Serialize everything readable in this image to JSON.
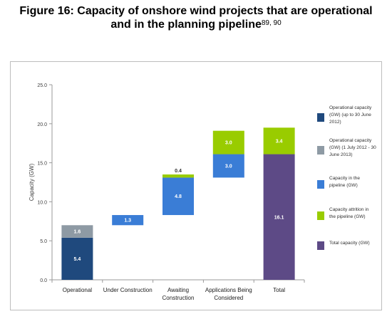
{
  "figure": {
    "title_line1": "Figure 16: Capacity of onshore wind projects that are operational",
    "title_line2": "and in the planning pipeline",
    "footnote_refs": "89, 90"
  },
  "chart_data": {
    "type": "bar",
    "subtype": "stacked-waterfall",
    "categories": [
      "Operational",
      "Under Construction",
      "Awaiting\nConstruction",
      "Applications Being\nConsidered",
      "Total"
    ],
    "ylabel": "Capacity (GW)",
    "xlabel": "",
    "ylim": [
      0,
      25
    ],
    "yticks": [
      "0.0",
      "5.0",
      "10.0",
      "15.0",
      "20.0",
      "25.0"
    ],
    "ytick_values": [
      0,
      5,
      10,
      15,
      20,
      25
    ],
    "grid": false,
    "legend_position": "right",
    "segments": [
      {
        "category": 0,
        "base": 0.0,
        "value": 5.4,
        "legend_key": 0,
        "label": "5.4",
        "color": "#1f497d"
      },
      {
        "category": 0,
        "base": 5.4,
        "value": 1.6,
        "legend_key": 1,
        "label": "1.6",
        "color": "#8e9aa4"
      },
      {
        "category": 1,
        "base": 7.0,
        "value": 1.3,
        "legend_key": 2,
        "label": "1.3",
        "color": "#3a7dd6"
      },
      {
        "category": 2,
        "base": 8.3,
        "value": 4.8,
        "legend_key": 2,
        "label": "4.8",
        "color": "#3a7dd6"
      },
      {
        "category": 2,
        "base": 13.1,
        "value": 0.4,
        "legend_key": 3,
        "label": "0.4",
        "color": "#99cc00"
      },
      {
        "category": 3,
        "base": 13.1,
        "value": 3.0,
        "legend_key": 2,
        "label": "3.0",
        "color": "#3a7dd6"
      },
      {
        "category": 3,
        "base": 16.1,
        "value": 3.0,
        "legend_key": 3,
        "label": "3.0",
        "color": "#99cc00"
      },
      {
        "category": 4,
        "base": 0.0,
        "value": 16.1,
        "legend_key": 4,
        "label": "16.1",
        "color": "#5d4a86"
      },
      {
        "category": 4,
        "base": 16.1,
        "value": 3.4,
        "legend_key": 3,
        "label": "3.4",
        "color": "#99cc00"
      }
    ],
    "legend": [
      {
        "label": "Operational capacity (GW) (up to 30 June 2012)",
        "color": "#1f497d"
      },
      {
        "label": "Operational capacity (GW) (1 July 2012 - 30 June 2013)",
        "color": "#8e9aa4"
      },
      {
        "label": "Capacity in the pipeline (GW)",
        "color": "#3a7dd6"
      },
      {
        "label": "Capacity attrition in the pipeline (GW)",
        "color": "#99cc00"
      },
      {
        "label": "Total capacity (GW)",
        "color": "#5d4a86"
      }
    ]
  }
}
